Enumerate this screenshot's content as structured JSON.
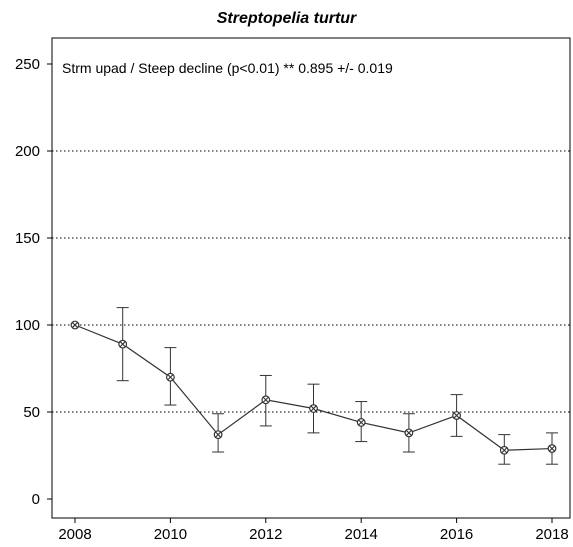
{
  "chart_data": {
    "type": "line",
    "title": "Streptopelia turtur",
    "annotation": "Strm upad / Steep decline (p<0.01) **  0.895 +/- 0.019",
    "xlabel": "",
    "ylabel": "",
    "xlim": [
      2008,
      2018
    ],
    "ylim": [
      0,
      250
    ],
    "x_ticks": [
      "2008",
      "2010",
      "2012",
      "2014",
      "2016",
      "2018"
    ],
    "y_ticks": [
      "0",
      "50",
      "100",
      "150",
      "200",
      "250"
    ],
    "grid": "horizontal dotted at 50, 100, 150, 200",
    "line_color": "#333333",
    "series": [
      {
        "x": [
          2008,
          2009,
          2010,
          2011,
          2012,
          2013,
          2014,
          2015,
          2016,
          2017,
          2018
        ],
        "values": [
          100,
          89,
          70,
          37,
          57,
          52,
          44,
          38,
          48,
          28,
          29
        ],
        "lower": [
          100,
          68,
          54,
          27,
          42,
          38,
          33,
          27,
          36,
          20,
          20
        ],
        "upper": [
          100,
          110,
          87,
          49,
          71,
          66,
          56,
          49,
          60,
          37,
          38
        ]
      }
    ]
  }
}
